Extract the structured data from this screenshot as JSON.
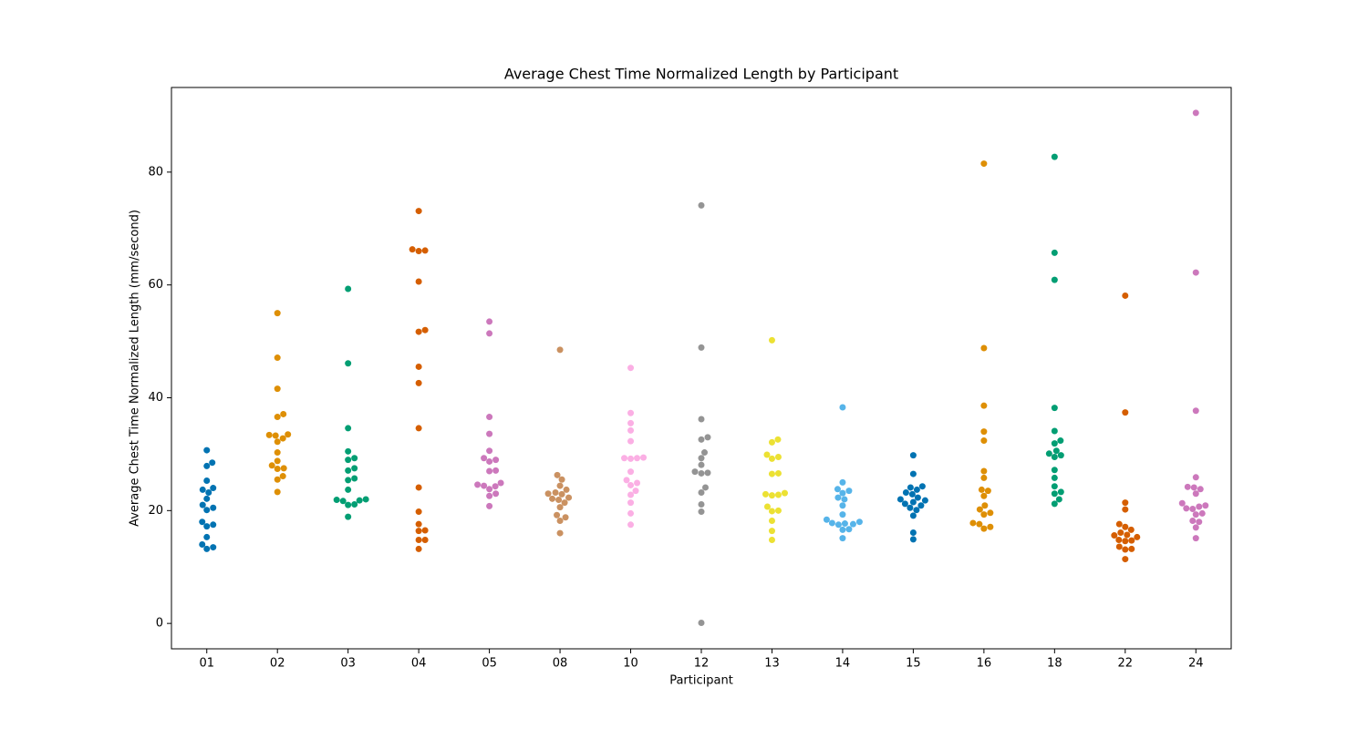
{
  "chart_data": {
    "type": "swarm",
    "title": "Average Chest Time Normalized Length by Participant",
    "x_label": "Participant",
    "y_label": "Average Chest Time Normalized Length (mm/second)",
    "categories": [
      "01",
      "02",
      "03",
      "04",
      "05",
      "08",
      "10",
      "12",
      "13",
      "14",
      "15",
      "16",
      "18",
      "22",
      "24"
    ],
    "colors": [
      "#0173b2",
      "#de8f05",
      "#029e73",
      "#d55e00",
      "#cc78bc",
      "#ca9161",
      "#fbafe4",
      "#949494",
      "#ece133",
      "#56b4e9",
      "#0173b2",
      "#de8f05",
      "#029e73",
      "#d55e00",
      "#cc78bc"
    ],
    "values": [
      [
        30.7,
        28.5,
        27.9,
        25.3,
        24.0,
        23.7,
        23.2,
        22.1,
        21.0,
        20.5,
        20.1,
        18.0,
        17.5,
        17.2,
        15.3,
        14.0,
        13.5,
        13.2
      ],
      [
        55.0,
        47.1,
        41.6,
        37.1,
        36.6,
        33.5,
        33.3,
        33.4,
        32.8,
        32.2,
        30.3,
        28.8,
        28.0,
        27.5,
        27.4,
        26.1,
        25.5,
        23.3
      ],
      [
        59.3,
        46.1,
        34.6,
        30.5,
        29.3,
        29.0,
        27.5,
        27.1,
        25.7,
        25.4,
        23.7,
        22.0,
        21.9,
        21.8,
        21.7,
        21.1,
        21.0,
        18.9
      ],
      [
        73.1,
        66.3,
        66.1,
        66.0,
        60.6,
        52.0,
        51.7,
        45.5,
        42.6,
        34.6,
        24.1,
        19.8,
        17.6,
        16.5,
        16.4,
        14.8,
        14.8,
        13.2
      ],
      [
        53.5,
        51.4,
        36.6,
        33.6,
        30.6,
        29.3,
        29.0,
        28.7,
        27.1,
        27.0,
        24.9,
        24.6,
        24.4,
        24.3,
        23.8,
        23.0,
        22.6,
        20.8
      ],
      [
        48.5,
        26.3,
        25.5,
        24.4,
        23.7,
        23.2,
        23.0,
        22.9,
        22.3,
        22.1,
        21.9,
        21.4,
        20.6,
        19.2,
        18.8,
        18.2,
        16.0
      ],
      [
        45.3,
        37.3,
        35.5,
        34.2,
        32.3,
        29.4,
        29.3,
        29.2,
        29.3,
        26.9,
        25.4,
        24.9,
        24.5,
        23.5,
        22.8,
        21.4,
        19.5,
        17.5
      ],
      [
        74.1,
        48.9,
        36.2,
        33.0,
        32.6,
        30.3,
        29.3,
        28.1,
        26.9,
        26.7,
        26.6,
        24.1,
        23.2,
        21.1,
        19.8,
        0.1
      ],
      [
        50.2,
        32.6,
        32.1,
        29.9,
        29.5,
        29.2,
        26.6,
        26.5,
        23.1,
        22.9,
        22.8,
        22.7,
        20.7,
        20.0,
        19.9,
        18.2,
        16.4,
        14.8
      ],
      [
        38.3,
        25.0,
        23.8,
        23.5,
        23.1,
        22.3,
        22.0,
        20.9,
        19.3,
        18.4,
        18.0,
        17.8,
        17.7,
        17.6,
        17.5,
        16.7,
        16.6,
        15.1
      ],
      [
        29.8,
        26.5,
        24.3,
        24.1,
        23.7,
        23.2,
        22.9,
        22.3,
        22.0,
        21.8,
        21.5,
        21.2,
        20.9,
        20.5,
        20.1,
        19.1,
        16.1,
        14.9
      ],
      [
        81.5,
        48.8,
        38.6,
        34.0,
        32.4,
        27.0,
        25.8,
        23.7,
        23.5,
        22.6,
        20.9,
        20.2,
        19.6,
        19.3,
        17.8,
        17.6,
        17.1,
        16.8
      ],
      [
        82.7,
        65.7,
        60.9,
        38.2,
        34.1,
        32.4,
        31.9,
        30.6,
        30.1,
        29.8,
        29.5,
        27.2,
        25.8,
        24.3,
        23.3,
        23.0,
        22.0,
        21.2
      ],
      [
        58.1,
        37.4,
        21.4,
        20.2,
        17.6,
        17.1,
        16.6,
        16.1,
        15.7,
        15.6,
        15.3,
        14.8,
        14.7,
        14.6,
        13.6,
        13.2,
        13.1,
        11.4
      ],
      [
        90.5,
        62.2,
        37.7,
        25.9,
        24.2,
        24.1,
        23.8,
        23.0,
        21.3,
        20.9,
        20.7,
        20.4,
        20.3,
        19.5,
        19.3,
        18.2,
        18.0,
        17.0,
        15.1
      ]
    ],
    "ylim": [
      -4.5,
      95.0
    ],
    "yticks": [
      0,
      20,
      40,
      60,
      80
    ]
  }
}
